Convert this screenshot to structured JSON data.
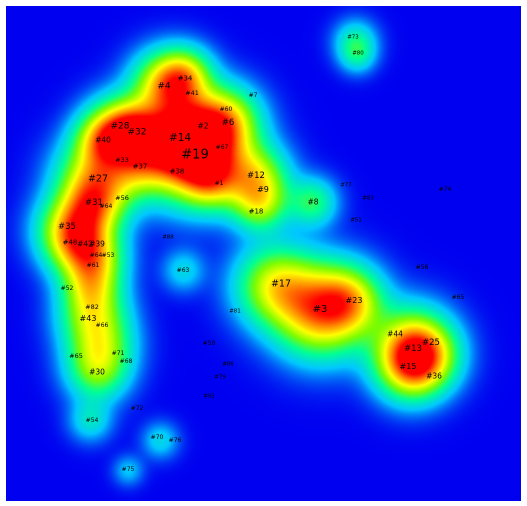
{
  "colors": {
    "background": "#0000f0",
    "frame": "#ffffff",
    "ramp": [
      "#0000f0",
      "#00c8ff",
      "#00ff96",
      "#7cfc00",
      "#ffff00",
      "#ff8c00",
      "#ff0000"
    ]
  },
  "labels": [
    "#73",
    "#80",
    "#4",
    "#34",
    "#41",
    "#7",
    "#60",
    "#6",
    "#2",
    "#28",
    "#32",
    "#14",
    "#40",
    "#67",
    "#19",
    "#33",
    "#37",
    "#38",
    "#27",
    "#64",
    "#12",
    "#1",
    "#9",
    "#77",
    "#74",
    "#31",
    "#56",
    "#83",
    "#8",
    "#18",
    "#51",
    "#35",
    "#88",
    "#48",
    "#42",
    "#39",
    "#64",
    "#53",
    "#61",
    "#63",
    "#58",
    "#17",
    "#65",
    "#52",
    "#82",
    "#3",
    "#23",
    "#43",
    "#66",
    "#81",
    "#44",
    "#25",
    "#13",
    "#50",
    "#71",
    "#65",
    "#68",
    "#86",
    "#15",
    "#36",
    "#30",
    "#79",
    "#92",
    "#72",
    "#54",
    "#70",
    "#76",
    "#75"
  ]
}
